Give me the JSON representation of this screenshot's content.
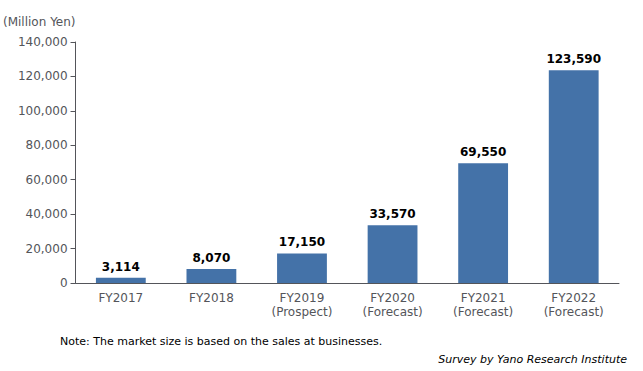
{
  "chart_data": {
    "type": "bar",
    "ylabel": "(Million Yen)",
    "categories": [
      "FY2017",
      "FY2018",
      "FY2019\n(Prospect)",
      "FY2020\n(Forecast)",
      "FY2021\n(Forecast)",
      "FY2022\n(Forecast)"
    ],
    "values": [
      3114,
      8070,
      17150,
      33570,
      69550,
      123590
    ],
    "value_labels": [
      "3,114",
      "8,070",
      "17,150",
      "33,570",
      "69,550",
      "123,590"
    ],
    "color": "#4472A8",
    "ylim": [
      0,
      140000
    ],
    "yticks": [
      0,
      {
        "value": 20000,
        "label": "20,000"
      },
      {
        "value": 40000,
        "label": "40,000"
      },
      {
        "value": 60000,
        "label": "60,000"
      },
      {
        "value": 80000,
        "label": "80,000"
      },
      {
        "value": 100000,
        "label": "100,000"
      },
      {
        "value": 120000,
        "label": "120,000"
      },
      {
        "value": 140000,
        "label": "140,000"
      }
    ],
    "grid": false,
    "data_labels": true,
    "annotations": [
      "Note: The market size is based on the sales at businesses.",
      "Survey by Yano Research Institute"
    ]
  }
}
